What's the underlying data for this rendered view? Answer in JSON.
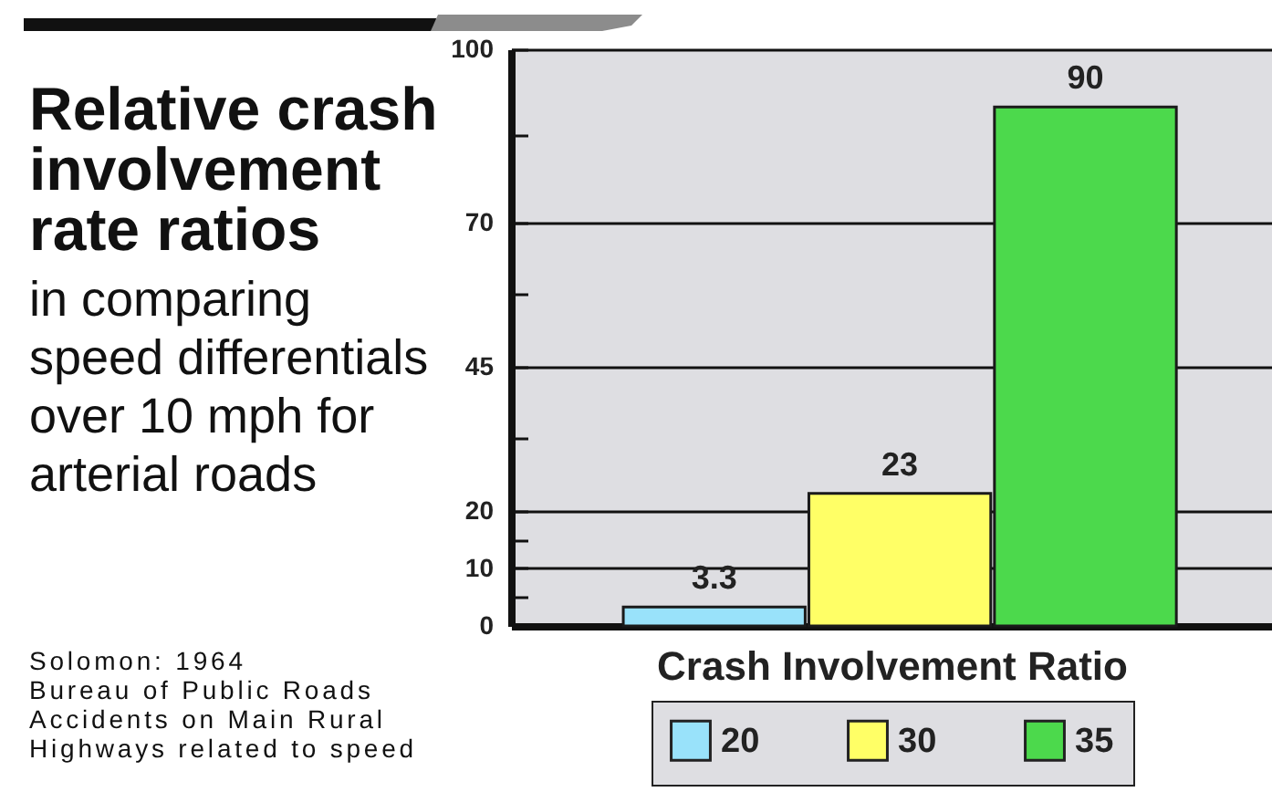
{
  "chart_data": {
    "type": "bar",
    "title": "Relative crash\ninvolvement\nrate ratios",
    "subtitle": "in comparing\nspeed differentials\nover 10 mph for\narterial roads",
    "xlabel": "Crash Involvement Ratio",
    "annotations": [
      "Solomon: 1964",
      "Bureau of Public Roads",
      "Accidents on Main Rural\nHighways related to speed"
    ],
    "categories": [
      null
    ],
    "series": [
      {
        "name": "20",
        "color": "#99e2fa",
        "values": [
          3.3
        ]
      },
      {
        "name": "30",
        "color": "#ffff66",
        "values": [
          23
        ]
      },
      {
        "name": "35",
        "color": "#4cd94c",
        "values": [
          90
        ]
      }
    ],
    "ylim": [
      0,
      100
    ],
    "yticks": [
      0,
      {
        "value": 5,
        "label": null
      },
      10,
      {
        "value": 15,
        "label": null
      },
      20,
      {
        "value": 32.5,
        "label": null
      },
      45,
      {
        "value": 57.5,
        "label": null
      },
      70,
      {
        "value": 85,
        "label": null
      },
      100
    ],
    "grid": "y",
    "legend": "bottom",
    "data_labels": true
  }
}
